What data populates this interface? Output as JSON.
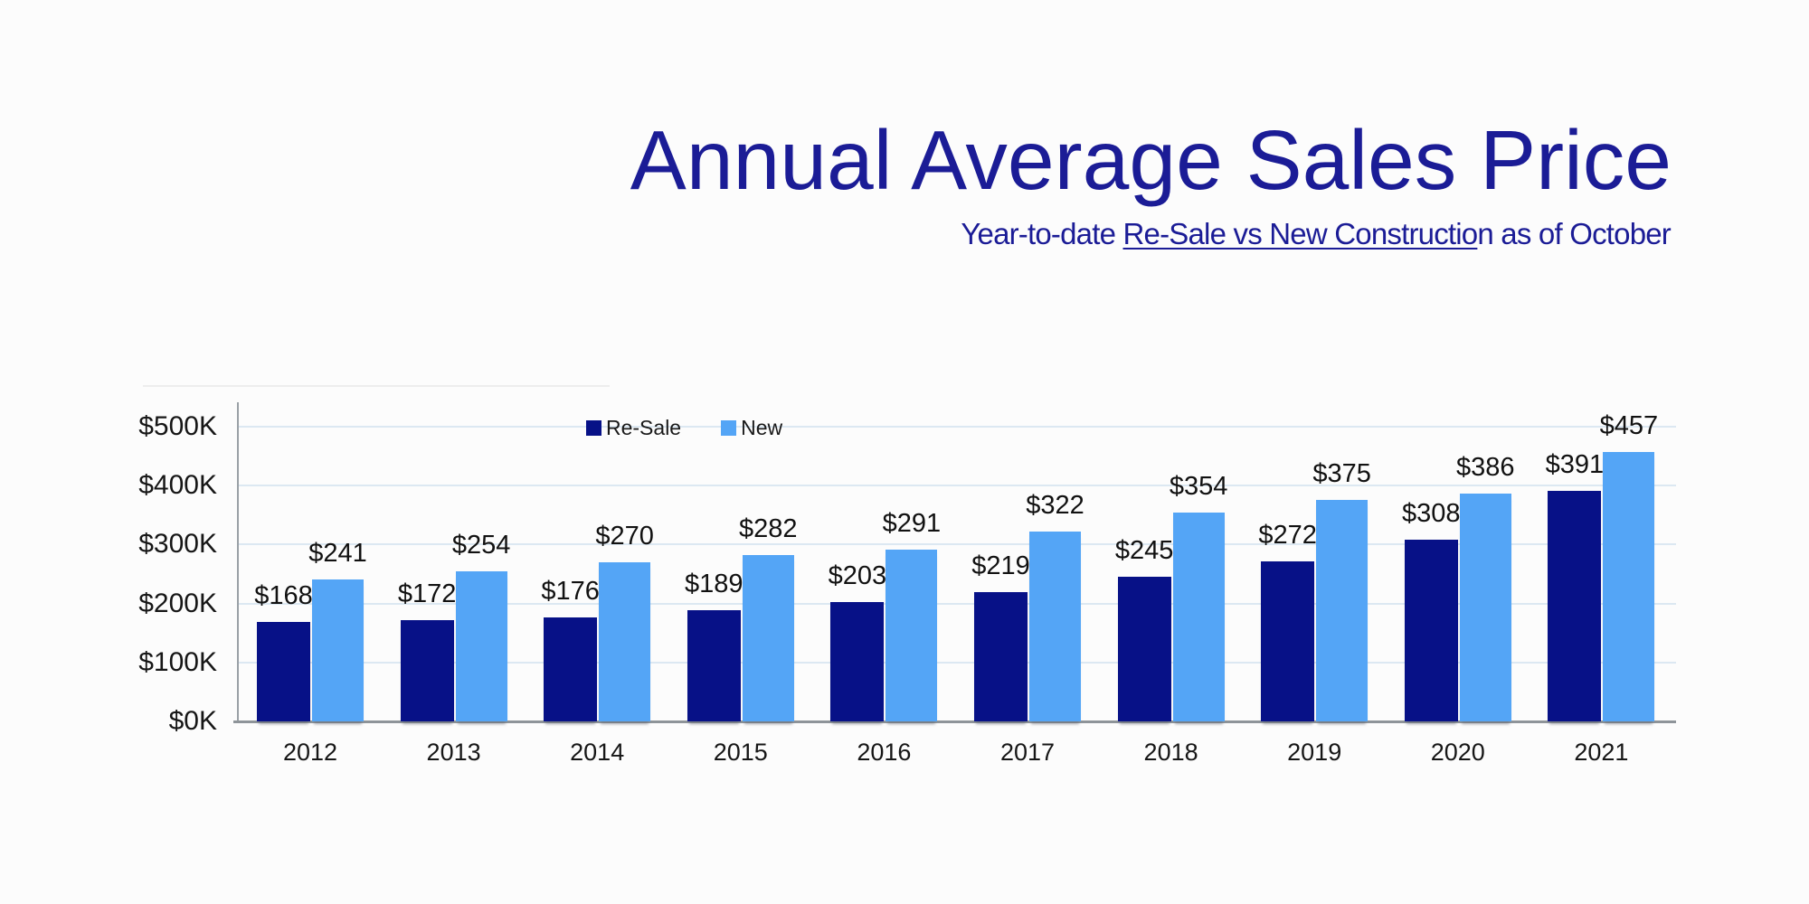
{
  "page": {
    "background_color": "#fcfcfc"
  },
  "header": {
    "title": "Annual Average Sales Price",
    "title_color": "#1b1c96",
    "subtitle_prefix": "Year-to-date ",
    "subtitle_underlined": "Re-Sale vs New Constructio",
    "subtitle_suffix": "n as of October",
    "subtitle_color": "#1b1c96"
  },
  "chart_data": {
    "type": "bar",
    "title": "Annual Average Sales Price",
    "subtitle": "Year-to-date Re-Sale vs New Construction as of October",
    "categories": [
      "2012",
      "2013",
      "2014",
      "2015",
      "2016",
      "2017",
      "2018",
      "2019",
      "2020",
      "2021"
    ],
    "series": [
      {
        "name": "Re-Sale",
        "color": "#071187",
        "values": [
          168,
          172,
          176,
          189,
          203,
          219,
          245,
          272,
          308,
          391
        ]
      },
      {
        "name": "New",
        "color": "#54a5f6",
        "values": [
          241,
          254,
          270,
          282,
          291,
          322,
          354,
          375,
          386,
          457
        ]
      }
    ],
    "value_label_prefix": "$",
    "units": "thousands of dollars",
    "yticks": [
      "$0K",
      "$100K",
      "$200K",
      "$300K",
      "$400K",
      "$500K"
    ],
    "ytick_values": [
      0,
      100,
      200,
      300,
      400,
      500
    ],
    "ylim": [
      0,
      500
    ],
    "grid": true,
    "gridline_color": "#dce8f2",
    "axis_color": "#9aa0a6",
    "baseline_color": "#8e9499",
    "label_color": "#111111",
    "legend_position": "top-center-inside",
    "data_labels": true
  }
}
